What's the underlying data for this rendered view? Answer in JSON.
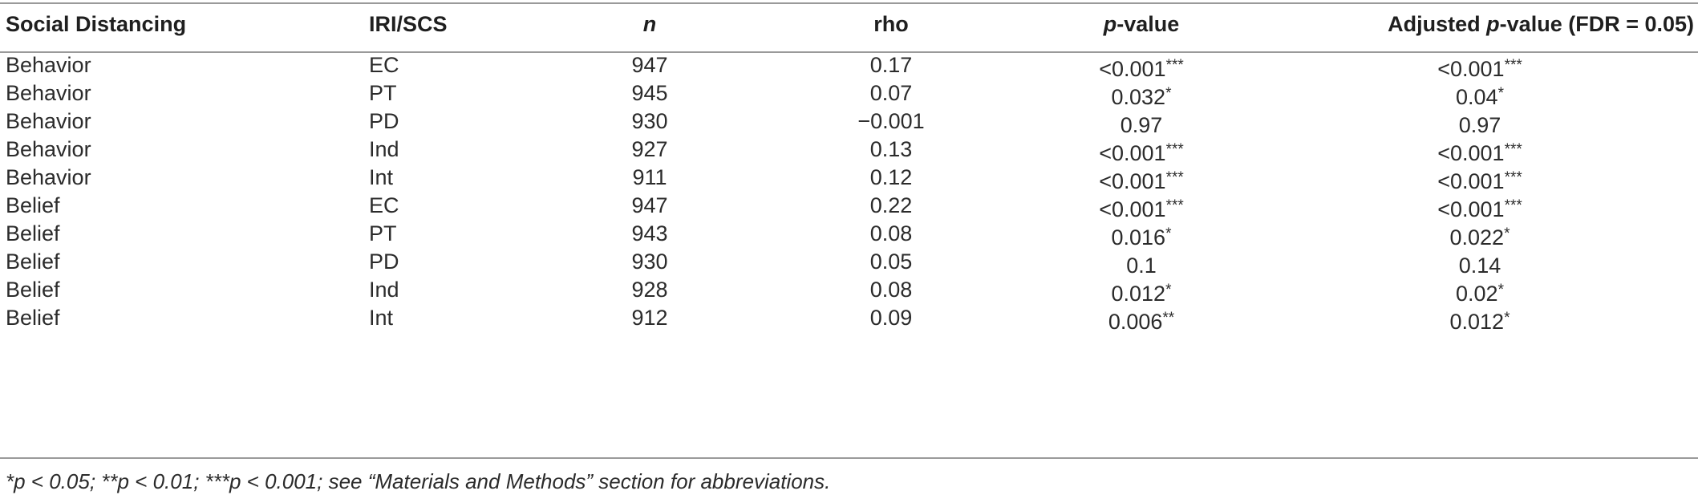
{
  "table": {
    "headers": {
      "col1": "Social Distancing",
      "col2": "IRI/SCS",
      "col3": "n",
      "col4": "rho",
      "col5_italic": "p",
      "col5_rest": "-value",
      "col6_prefix": "Adjusted ",
      "col6_italic": "p",
      "col6_rest": "-value (FDR = 0.05)"
    },
    "rows": [
      {
        "sd": "Behavior",
        "scale": "EC",
        "n": "947",
        "rho": "0.17",
        "p": "<0.001",
        "p_stars": "***",
        "adj": "<0.001",
        "adj_stars": "***"
      },
      {
        "sd": "Behavior",
        "scale": "PT",
        "n": "945",
        "rho": "0.07",
        "p": "0.032",
        "p_stars": "*",
        "adj": "0.04",
        "adj_stars": "*"
      },
      {
        "sd": "Behavior",
        "scale": "PD",
        "n": "930",
        "rho": "−0.001",
        "p": "0.97",
        "p_stars": "",
        "adj": "0.97",
        "adj_stars": ""
      },
      {
        "sd": "Behavior",
        "scale": "Ind",
        "n": "927",
        "rho": "0.13",
        "p": "<0.001",
        "p_stars": "***",
        "adj": "<0.001",
        "adj_stars": "***"
      },
      {
        "sd": "Behavior",
        "scale": "Int",
        "n": "911",
        "rho": "0.12",
        "p": "<0.001",
        "p_stars": "***",
        "adj": "<0.001",
        "adj_stars": "***"
      },
      {
        "sd": "Belief",
        "scale": "EC",
        "n": "947",
        "rho": "0.22",
        "p": "<0.001",
        "p_stars": "***",
        "adj": "<0.001",
        "adj_stars": "***"
      },
      {
        "sd": "Belief",
        "scale": "PT",
        "n": "943",
        "rho": "0.08",
        "p": "0.016",
        "p_stars": "*",
        "adj": "0.022",
        "adj_stars": "*"
      },
      {
        "sd": "Belief",
        "scale": "PD",
        "n": "930",
        "rho": "0.05",
        "p": "0.1",
        "p_stars": "",
        "adj": "0.14",
        "adj_stars": ""
      },
      {
        "sd": "Belief",
        "scale": "Ind",
        "n": "928",
        "rho": "0.08",
        "p": "0.012",
        "p_stars": "*",
        "adj": "0.02",
        "adj_stars": "*"
      },
      {
        "sd": "Belief",
        "scale": "Int",
        "n": "912",
        "rho": "0.09",
        "p": "0.006",
        "p_stars": "**",
        "adj": "0.012",
        "adj_stars": "*"
      }
    ]
  },
  "footnote": "*p < 0.05; **p < 0.01; ***p < 0.001; see “Materials and Methods” section for abbreviations."
}
